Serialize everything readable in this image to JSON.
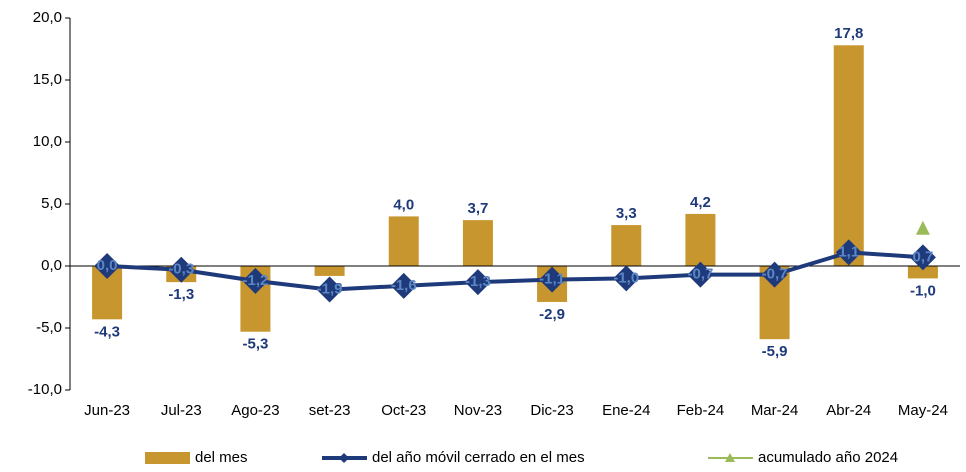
{
  "chart_data": {
    "type": "bar_line",
    "categories": [
      "Jun-23",
      "Jul-23",
      "Ago-23",
      "set-23",
      "Oct-23",
      "Nov-23",
      "Dic-23",
      "Ene-24",
      "Feb-24",
      "Mar-24",
      "Abr-24",
      "May-24"
    ],
    "series": [
      {
        "name": "del mes",
        "type": "bar",
        "color": "#c8962e",
        "values": [
          -4.3,
          -1.3,
          -5.3,
          -0.8,
          4.0,
          3.7,
          -2.9,
          3.3,
          4.2,
          -5.9,
          17.8,
          -1.0
        ],
        "value_labels": [
          "-4,3",
          "-1,3",
          "-5,3",
          "-0,8",
          "4,0",
          "3,7",
          "-2,9",
          "3,3",
          "4,2",
          "-5,9",
          "17,8",
          "-1,0"
        ]
      },
      {
        "name": "del año móvil cerrado en el mes",
        "type": "line",
        "color": "#1f3a7a",
        "values": [
          0.0,
          -0.3,
          -1.2,
          -1.9,
          -1.6,
          -1.3,
          -1.1,
          -1.0,
          -0.7,
          -0.7,
          1.1,
          0.7
        ],
        "value_labels": [
          "0,0",
          "-0,3",
          "-1,2",
          "-1,9",
          "-1,6",
          "-1,3",
          "-1,1",
          "-1,0",
          "-0,7",
          "-0,7",
          "1,1",
          "0,7"
        ]
      },
      {
        "name": "acumulado año 2024",
        "type": "marker",
        "color": "#9bbb59",
        "values": [
          null,
          null,
          null,
          null,
          null,
          null,
          null,
          null,
          null,
          null,
          null,
          3.0
        ]
      }
    ],
    "ylim": [
      -10,
      20
    ],
    "yticks": [
      {
        "value": -10,
        "label": "-10,0"
      },
      {
        "value": -5,
        "label": "-5,0"
      },
      {
        "value": 0,
        "label": "0,0"
      },
      {
        "value": 5,
        "label": "5,0"
      },
      {
        "value": 10,
        "label": "10,0"
      },
      {
        "value": 15,
        "label": "15,0"
      },
      {
        "value": 20,
        "label": "20,0"
      }
    ],
    "legend": "bottom"
  }
}
